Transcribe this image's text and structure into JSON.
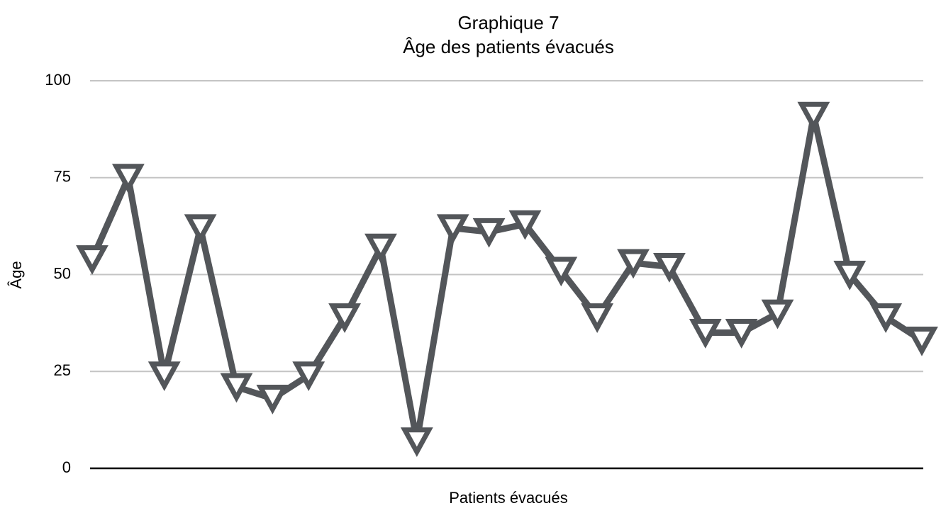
{
  "chart_data": {
    "type": "line",
    "title": "Graphique 7",
    "subtitle": "Âge des patients évacués",
    "y_label": "Âge",
    "x_label": "Patients évacués",
    "categories": [
      null,
      null,
      null,
      null,
      null,
      null,
      null,
      null,
      null,
      null,
      null,
      null,
      null,
      null,
      null,
      null,
      null,
      null,
      null,
      null,
      null,
      null,
      null,
      null
    ],
    "series": [
      {
        "name": "Âge",
        "color": "#53565a",
        "values": [
          54,
          75,
          24,
          62,
          21,
          18,
          24,
          39,
          57,
          7,
          62,
          61,
          63,
          51,
          39,
          53,
          52,
          35,
          35,
          40,
          91,
          50,
          39,
          33
        ]
      }
    ],
    "ylim": [
      0,
      100
    ],
    "yticks": [
      0,
      25,
      50,
      75,
      100
    ],
    "grid": true,
    "marker": "triangle-down"
  }
}
